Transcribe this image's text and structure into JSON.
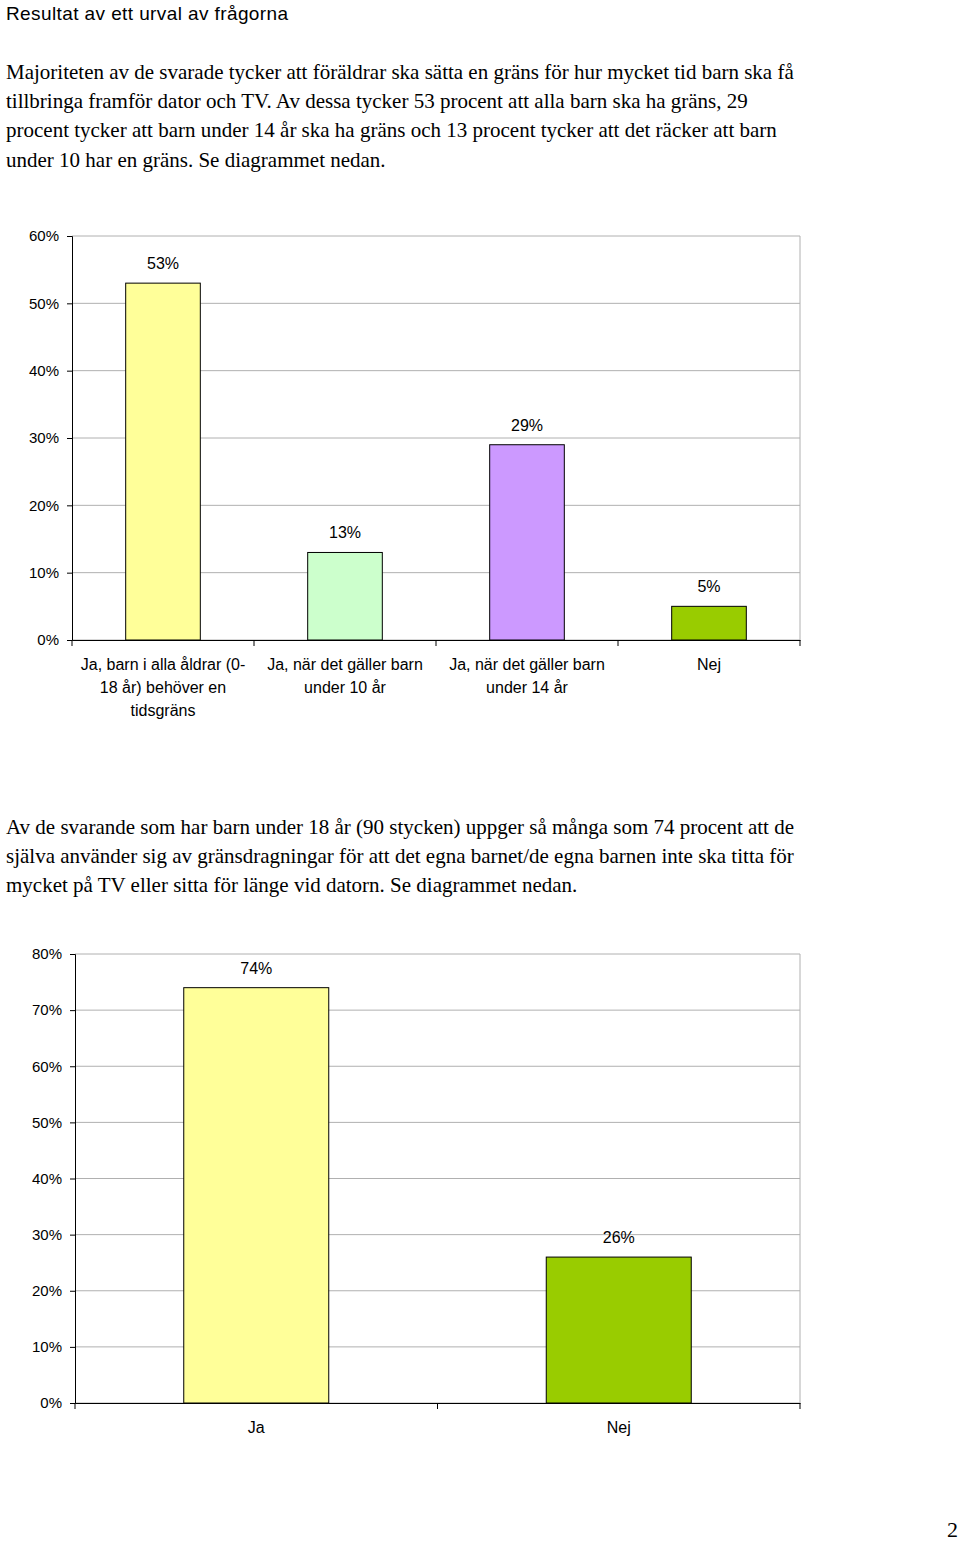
{
  "header": "Resultat av ett urval av frågorna",
  "paragraphs": [
    [
      "Majoriteten av de svarade tycker att föräldrar ska sätta en gräns för hur mycket tid barn ska få",
      "tillbringa framför dator och TV. Av dessa tycker 53 procent att alla barn ska ha gräns, 29",
      "procent tycker att barn under 14 år ska ha gräns och 13 procent tycker att det räcker att barn",
      "under 10 har en gräns. Se diagrammet nedan."
    ],
    [
      "Av de svarande som har barn under 18 år (90 stycken) uppger så många som 74 procent att de",
      "själva använder sig av gränsdragningar för att det egna barnet/de egna barnen inte ska titta för",
      "mycket på TV eller sitta för länge vid datorn. Se diagrammet nedan."
    ]
  ],
  "chart_data": [
    {
      "type": "bar",
      "categories": [
        "Ja, barn i alla åldrar (0-18 år) behöver en tidsgräns",
        "Ja, när det gäller barn under 10 år",
        "Ja, när det gäller barn under 14 år",
        "Nej"
      ],
      "values": [
        53,
        13,
        29,
        5
      ],
      "value_labels": [
        "53%",
        "13%",
        "29%",
        "5%"
      ],
      "colors": [
        "#ffff99",
        "#ccffcc",
        "#cc99ff",
        "#99cc00"
      ],
      "ylim": [
        0,
        60
      ],
      "yticks": [
        {
          "value": 0,
          "label": "0%"
        },
        {
          "value": 10,
          "label": "10%"
        },
        {
          "value": 20,
          "label": "20%"
        },
        {
          "value": 30,
          "label": "30%"
        },
        {
          "value": 40,
          "label": "40%"
        },
        {
          "value": 50,
          "label": "50%"
        },
        {
          "value": 60,
          "label": "60%"
        }
      ],
      "grid": true,
      "data_labels": true
    },
    {
      "type": "bar",
      "categories": [
        "Ja",
        "Nej"
      ],
      "values": [
        74,
        26
      ],
      "value_labels": [
        "74%",
        "26%"
      ],
      "colors": [
        "#ffff99",
        "#99cc00"
      ],
      "ylim": [
        0,
        80
      ],
      "yticks": [
        {
          "value": 0,
          "label": "0%"
        },
        {
          "value": 10,
          "label": "10%"
        },
        {
          "value": 20,
          "label": "20%"
        },
        {
          "value": 30,
          "label": "30%"
        },
        {
          "value": 40,
          "label": "40%"
        },
        {
          "value": 50,
          "label": "50%"
        },
        {
          "value": 60,
          "label": "60%"
        },
        {
          "value": 70,
          "label": "70%"
        },
        {
          "value": 80,
          "label": "80%"
        }
      ],
      "grid": true,
      "data_labels": true
    }
  ],
  "page_number": 2
}
